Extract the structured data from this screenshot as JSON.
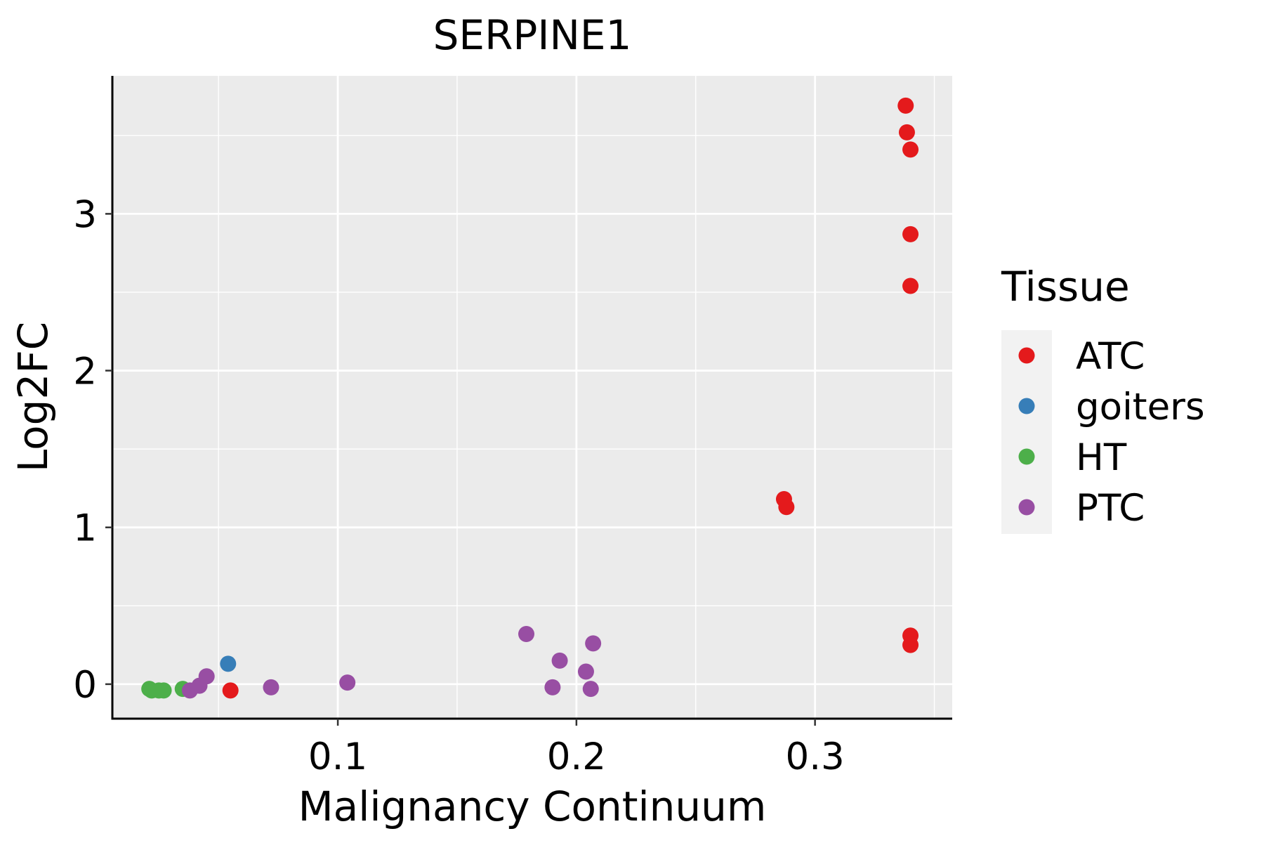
{
  "chart_data": {
    "type": "scatter",
    "title": "SERPINE1",
    "xlabel": "Malignancy Continuum",
    "ylabel": "Log2FC",
    "xlim": [
      0.0055,
      0.3575
    ],
    "ylim": [
      -0.22,
      3.88
    ],
    "x_ticks": [
      0.1,
      0.2,
      0.3
    ],
    "x_tick_labels": [
      "0.1",
      "0.2",
      "0.3"
    ],
    "x_minor": [
      0.05,
      0.15,
      0.25,
      0.35
    ],
    "y_ticks": [
      0,
      1,
      2,
      3
    ],
    "y_tick_labels": [
      "0",
      "1",
      "2",
      "3"
    ],
    "y_minor": [
      0.5,
      1.5,
      2.5,
      3.5
    ],
    "grid": true,
    "legend": {
      "title": "Tissue",
      "position": "right"
    },
    "series": [
      {
        "name": "ATC",
        "color": "#e41a1c",
        "points": [
          {
            "x": 0.338,
            "y": 3.69
          },
          {
            "x": 0.3385,
            "y": 3.52
          },
          {
            "x": 0.34,
            "y": 3.41
          },
          {
            "x": 0.34,
            "y": 2.87
          },
          {
            "x": 0.34,
            "y": 2.54
          },
          {
            "x": 0.287,
            "y": 1.18
          },
          {
            "x": 0.288,
            "y": 1.13
          },
          {
            "x": 0.34,
            "y": 0.31
          },
          {
            "x": 0.34,
            "y": 0.25
          },
          {
            "x": 0.055,
            "y": -0.04
          }
        ]
      },
      {
        "name": "goiters",
        "color": "#377eb8",
        "points": [
          {
            "x": 0.054,
            "y": 0.13
          }
        ]
      },
      {
        "name": "HT",
        "color": "#4daf4a",
        "points": [
          {
            "x": 0.021,
            "y": -0.03
          },
          {
            "x": 0.022,
            "y": -0.04
          },
          {
            "x": 0.025,
            "y": -0.04
          },
          {
            "x": 0.027,
            "y": -0.04
          },
          {
            "x": 0.035,
            "y": -0.03
          }
        ]
      },
      {
        "name": "PTC",
        "color": "#984ea3",
        "points": [
          {
            "x": 0.038,
            "y": -0.04
          },
          {
            "x": 0.042,
            "y": -0.01
          },
          {
            "x": 0.045,
            "y": 0.05
          },
          {
            "x": 0.072,
            "y": -0.02
          },
          {
            "x": 0.104,
            "y": 0.01
          },
          {
            "x": 0.179,
            "y": 0.32
          },
          {
            "x": 0.193,
            "y": 0.15
          },
          {
            "x": 0.19,
            "y": -0.02
          },
          {
            "x": 0.204,
            "y": 0.08
          },
          {
            "x": 0.207,
            "y": 0.26
          },
          {
            "x": 0.206,
            "y": -0.03
          }
        ]
      }
    ]
  }
}
